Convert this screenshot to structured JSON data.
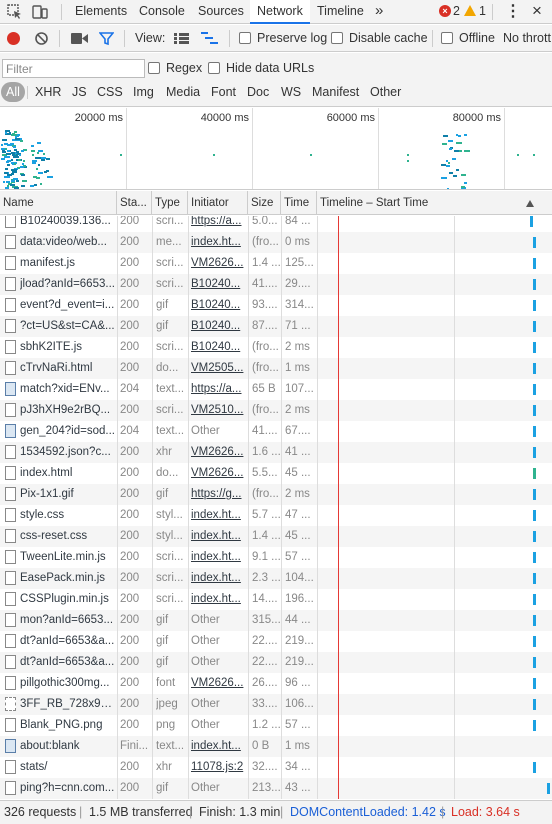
{
  "tabs": {
    "items": [
      "Elements",
      "Console",
      "Sources",
      "Network",
      "Timeline"
    ],
    "more": "»",
    "error_count": "2",
    "warning_count": "1",
    "menu": "⋮",
    "close": "×"
  },
  "toolbar": {
    "view_label": "View:",
    "preserve_log": "Preserve log",
    "disable_cache": "Disable cache",
    "offline": "Offline",
    "throttling": "No thrott"
  },
  "filter": {
    "placeholder": "Filter",
    "regex": "Regex",
    "hide_data_urls": "Hide data URLs",
    "types": [
      "All",
      "XHR",
      "JS",
      "CSS",
      "Img",
      "Media",
      "Font",
      "Doc",
      "WS",
      "Manifest",
      "Other"
    ]
  },
  "overview": {
    "ticks": [
      "20000 ms",
      "40000 ms",
      "60000 ms",
      "80000 ms"
    ]
  },
  "table": {
    "columns": [
      "Name",
      "Sta...",
      "Type",
      "Initiator",
      "Size",
      "Time",
      "Timeline – Start Time"
    ],
    "rows": [
      {
        "name": "B10240039.136...",
        "status": "200",
        "type": "scri...",
        "initiator": "https://a...",
        "init_link": true,
        "size": "5.0...",
        "time": "84 ...",
        "icon": "doc",
        "bar": 0.92
      },
      {
        "name": "data:video/web...",
        "status": "200",
        "type": "me...",
        "initiator": "index.ht...",
        "init_link": true,
        "size": "(fro...",
        "time": "0 ms",
        "icon": "doc",
        "bar": 0.93
      },
      {
        "name": "manifest.js",
        "status": "200",
        "type": "scri...",
        "initiator": "VM2626...",
        "init_link": true,
        "size": "1.4 ...",
        "time": "125...",
        "icon": "doc",
        "bar": 0.93
      },
      {
        "name": "jload?anId=6653...",
        "status": "200",
        "type": "scri...",
        "initiator": "B10240...",
        "init_link": true,
        "size": "41....",
        "time": "29....",
        "icon": "doc",
        "bar": 0.93
      },
      {
        "name": "event?d_event=i...",
        "status": "200",
        "type": "gif",
        "initiator": "B10240...",
        "init_link": true,
        "size": "93....",
        "time": "314...",
        "icon": "doc",
        "bar": 0.93
      },
      {
        "name": "?ct=US&st=CA&...",
        "status": "200",
        "type": "gif",
        "initiator": "B10240...",
        "init_link": true,
        "size": "87....",
        "time": "71 ...",
        "icon": "doc",
        "bar": 0.93
      },
      {
        "name": "sbhK2ITE.js",
        "status": "200",
        "type": "scri...",
        "initiator": "B10240...",
        "init_link": true,
        "size": "(fro...",
        "time": "2 ms",
        "icon": "doc",
        "bar": 0.93
      },
      {
        "name": "cTrvNaRi.html",
        "status": "200",
        "type": "do...",
        "initiator": "VM2505...",
        "init_link": true,
        "size": "(fro...",
        "time": "1 ms",
        "icon": "doc",
        "bar": 0.93
      },
      {
        "name": "match?xid=ENv...",
        "status": "204",
        "type": "text...",
        "initiator": "https://a...",
        "init_link": true,
        "size": "65 B",
        "time": "107...",
        "icon": "img",
        "bar": 0.93
      },
      {
        "name": "pJ3hXH9e2rBQ...",
        "status": "200",
        "type": "scri...",
        "initiator": "VM2510...",
        "init_link": true,
        "size": "(fro...",
        "time": "2 ms",
        "icon": "doc",
        "bar": 0.93
      },
      {
        "name": "gen_204?id=sod...",
        "status": "204",
        "type": "text...",
        "initiator": "Other",
        "init_link": false,
        "size": "41....",
        "time": "67....",
        "icon": "img",
        "bar": 0.93
      },
      {
        "name": "1534592.json?c...",
        "status": "200",
        "type": "xhr",
        "initiator": "VM2626...",
        "init_link": true,
        "size": "1.6 ...",
        "time": "41 ...",
        "icon": "doc",
        "bar": 0.93
      },
      {
        "name": "index.html",
        "status": "200",
        "type": "do...",
        "initiator": "VM2626...",
        "init_link": true,
        "size": "5.5...",
        "time": "45 ...",
        "icon": "doc",
        "bar": 0.93,
        "green": true
      },
      {
        "name": "Pix-1x1.gif",
        "status": "200",
        "type": "gif",
        "initiator": "https://g...",
        "init_link": true,
        "size": "(fro...",
        "time": "2 ms",
        "icon": "doc",
        "bar": 0.93
      },
      {
        "name": "style.css",
        "status": "200",
        "type": "styl...",
        "initiator": "index.ht...",
        "init_link": true,
        "size": "5.7 ...",
        "time": "47 ...",
        "icon": "doc",
        "bar": 0.93
      },
      {
        "name": "css-reset.css",
        "status": "200",
        "type": "styl...",
        "initiator": "index.ht...",
        "init_link": true,
        "size": "1.4 ...",
        "time": "45 ...",
        "icon": "doc",
        "bar": 0.93
      },
      {
        "name": "TweenLite.min.js",
        "status": "200",
        "type": "scri...",
        "initiator": "index.ht...",
        "init_link": true,
        "size": "9.1 ...",
        "time": "57 ...",
        "icon": "doc",
        "bar": 0.93
      },
      {
        "name": "EasePack.min.js",
        "status": "200",
        "type": "scri...",
        "initiator": "index.ht...",
        "init_link": true,
        "size": "2.3 ...",
        "time": "104...",
        "icon": "doc",
        "bar": 0.93
      },
      {
        "name": "CSSPlugin.min.js",
        "status": "200",
        "type": "scri...",
        "initiator": "index.ht...",
        "init_link": true,
        "size": "14....",
        "time": "196...",
        "icon": "doc",
        "bar": 0.93
      },
      {
        "name": "mon?anId=6653...",
        "status": "200",
        "type": "gif",
        "initiator": "Other",
        "init_link": false,
        "size": "315...",
        "time": "44 ...",
        "icon": "doc",
        "bar": 0.93
      },
      {
        "name": "dt?anId=6653&a...",
        "status": "200",
        "type": "gif",
        "initiator": "Other",
        "init_link": false,
        "size": "22....",
        "time": "219...",
        "icon": "doc",
        "bar": 0.93
      },
      {
        "name": "dt?anId=6653&a...",
        "status": "200",
        "type": "gif",
        "initiator": "Other",
        "init_link": false,
        "size": "22....",
        "time": "219...",
        "icon": "doc",
        "bar": 0.93
      },
      {
        "name": "pillgothic300mg...",
        "status": "200",
        "type": "font",
        "initiator": "VM2626...",
        "init_link": true,
        "size": "26....",
        "time": "96 ...",
        "icon": "doc",
        "bar": 0.93
      },
      {
        "name": "3FF_RB_728x90-...",
        "status": "200",
        "type": "jpeg",
        "initiator": "Other",
        "init_link": false,
        "size": "33....",
        "time": "106...",
        "icon": "dash",
        "bar": 0.93
      },
      {
        "name": "Blank_PNG.png",
        "status": "200",
        "type": "png",
        "initiator": "Other",
        "init_link": false,
        "size": "1.2 ...",
        "time": "57 ...",
        "icon": "doc",
        "bar": 0.93
      },
      {
        "name": "about:blank",
        "status": "Fini...",
        "type": "text...",
        "initiator": "index.ht...",
        "init_link": true,
        "size": "0 B",
        "time": "1 ms",
        "icon": "img",
        "bar": 0.93,
        "no_bar": true
      },
      {
        "name": "stats/",
        "status": "200",
        "type": "xhr",
        "initiator": "11078.js:2",
        "init_link": true,
        "size": "32....",
        "time": "34 ...",
        "icon": "doc",
        "bar": 0.93
      },
      {
        "name": "ping?h=cnn.com...",
        "status": "200",
        "type": "gif",
        "initiator": "Other",
        "init_link": false,
        "size": "213...",
        "time": "43 ...",
        "icon": "doc",
        "bar": 0.99
      }
    ]
  },
  "status": {
    "requests": "326 requests",
    "transferred": "1.5 MB transferred",
    "finish": "Finish: 1.3 min",
    "dcl": "DOMContentLoaded: 1.42 s",
    "load": "Load: 3.64 s"
  },
  "colors": {
    "accent": "#1a73e8",
    "record": "#d93025",
    "timeline_bar": "#1ba1e2",
    "load_line": "#e53935"
  }
}
